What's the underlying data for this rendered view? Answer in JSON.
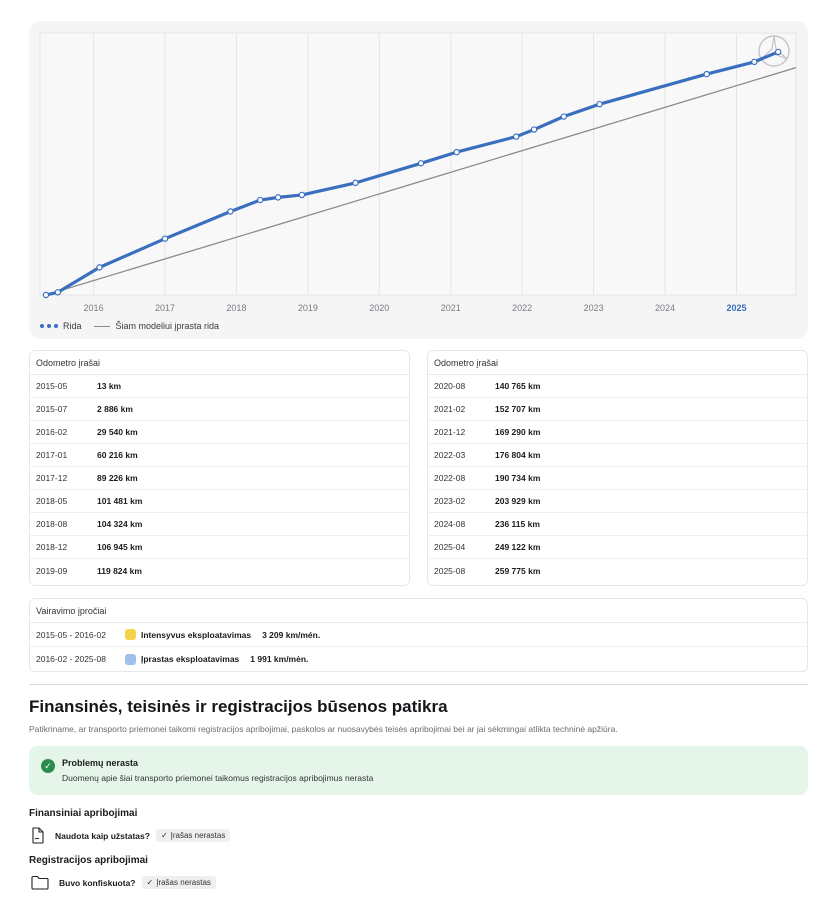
{
  "chart": {
    "legend": {
      "series_label": "Rida",
      "typical_label": "Šiam modeliui įprasta rida"
    },
    "x_ticks": [
      "2016",
      "2017",
      "2018",
      "2019",
      "2020",
      "2021",
      "2022",
      "2023",
      "2024",
      "2025"
    ],
    "highlight_tick": "2025",
    "colors": {
      "series": "#3a6fbf",
      "typical": "#8a8a8a",
      "highlight_tick": "#3a6fbf"
    }
  },
  "chart_data": {
    "type": "line",
    "x_type": "date",
    "x_range": [
      "2015-04",
      "2025-11"
    ],
    "y_range": [
      0,
      280000
    ],
    "series": [
      {
        "name": "Rida",
        "points": [
          {
            "x": "2015-05",
            "y": 13
          },
          {
            "x": "2015-07",
            "y": 2886
          },
          {
            "x": "2016-02",
            "y": 29540
          },
          {
            "x": "2017-01",
            "y": 60216
          },
          {
            "x": "2017-12",
            "y": 89226
          },
          {
            "x": "2018-05",
            "y": 101481
          },
          {
            "x": "2018-08",
            "y": 104324
          },
          {
            "x": "2018-12",
            "y": 106945
          },
          {
            "x": "2019-09",
            "y": 119824
          },
          {
            "x": "2020-08",
            "y": 140765
          },
          {
            "x": "2021-02",
            "y": 152707
          },
          {
            "x": "2021-12",
            "y": 169290
          },
          {
            "x": "2022-03",
            "y": 176804
          },
          {
            "x": "2022-08",
            "y": 190734
          },
          {
            "x": "2023-02",
            "y": 203929
          },
          {
            "x": "2024-08",
            "y": 236115
          },
          {
            "x": "2025-04",
            "y": 249122
          },
          {
            "x": "2025-08",
            "y": 259775
          }
        ]
      },
      {
        "name": "Šiam modeliui įprasta rida",
        "points": [
          {
            "x": "2015-05",
            "y": 0
          },
          {
            "x": "2025-11",
            "y": 243000
          }
        ]
      }
    ]
  },
  "odometer_left": {
    "title": "Odometro įrašai",
    "rows": [
      {
        "date": "2015-05",
        "km": "13 km"
      },
      {
        "date": "2015-07",
        "km": "2 886 km"
      },
      {
        "date": "2016-02",
        "km": "29 540 km"
      },
      {
        "date": "2017-01",
        "km": "60 216 km"
      },
      {
        "date": "2017-12",
        "km": "89 226 km"
      },
      {
        "date": "2018-05",
        "km": "101 481 km"
      },
      {
        "date": "2018-08",
        "km": "104 324 km"
      },
      {
        "date": "2018-12",
        "km": "106 945 km"
      },
      {
        "date": "2019-09",
        "km": "119 824 km"
      }
    ]
  },
  "odometer_right": {
    "title": "Odometro įrašai",
    "rows": [
      {
        "date": "2020-08",
        "km": "140 765 km"
      },
      {
        "date": "2021-02",
        "km": "152 707 km"
      },
      {
        "date": "2021-12",
        "km": "169 290 km"
      },
      {
        "date": "2022-03",
        "km": "176 804 km"
      },
      {
        "date": "2022-08",
        "km": "190 734 km"
      },
      {
        "date": "2023-02",
        "km": "203 929 km"
      },
      {
        "date": "2024-08",
        "km": "236 115 km"
      },
      {
        "date": "2025-04",
        "km": "249 122 km"
      },
      {
        "date": "2025-08",
        "km": "259 775 km"
      }
    ]
  },
  "habits": {
    "title": "Vairavimo įpročiai",
    "rows": [
      {
        "range": "2015-05 - 2016-02",
        "label": "Intensyvus eksploatavimas",
        "rate": "3 209 km/mén.",
        "color": "#f5d24b"
      },
      {
        "range": "2016-02 - 2025-08",
        "label": "Įprastas eksploatavimas",
        "rate": "1 991 km/mėn.",
        "color": "#9ec1ec"
      }
    ]
  },
  "section": {
    "title": "Finansinės, teisinės ir registracijos būsenos patikra",
    "description": "Patikriname, ar transporto priemonei taikomi registracijos apribojimai, paskolos ar nuosavybės teisės apribojimai bei ar jai sėkmingai atlikta techninė apžiūra."
  },
  "status": {
    "title": "Problemų nerasta",
    "text": "Duomenų apie šiai transporto priemonei taikomus registracijos apribojimus nerasta",
    "color": "#2e8b4e"
  },
  "financial": {
    "title": "Finansiniai apribojimai",
    "question": "Naudota kaip užstatas?",
    "answer": "Įrašas nerastas"
  },
  "registration": {
    "title": "Registracijos apribojimai",
    "question": "Buvo konfiskuota?",
    "answer": "Įrašas nerastas"
  }
}
